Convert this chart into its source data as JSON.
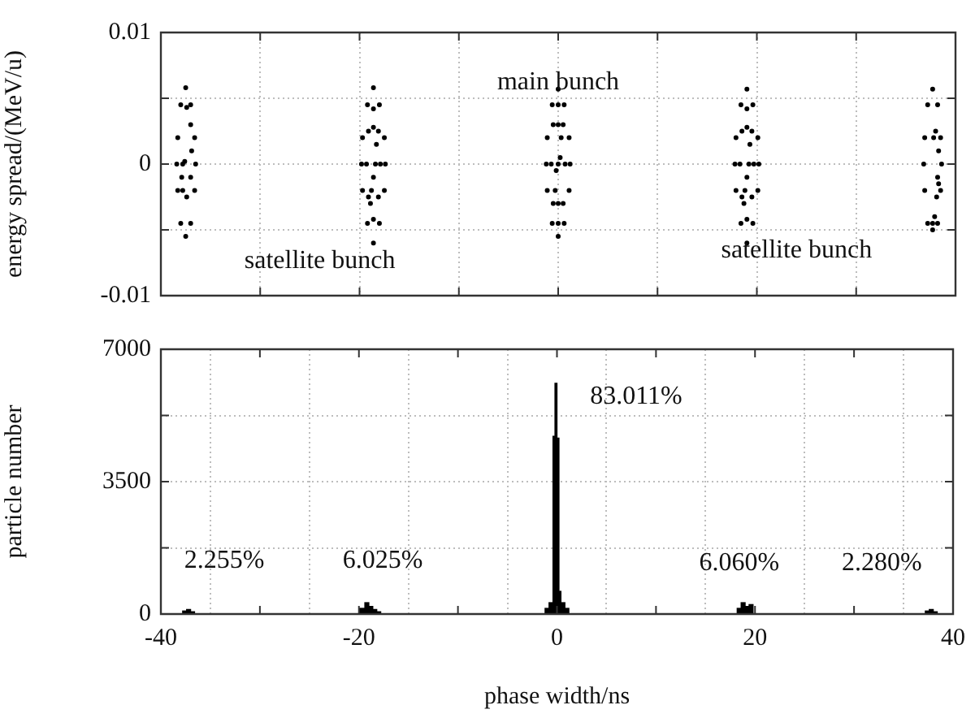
{
  "chart_data": [
    {
      "type": "scatter",
      "ylabel": "energy spread/(MeV/u)",
      "xlim": [
        -40,
        40
      ],
      "xticks": [
        -40,
        {
          "value": -30,
          "label": null
        },
        -20,
        {
          "value": -10,
          "label": null
        },
        0,
        {
          "value": 10,
          "label": null
        },
        20,
        {
          "value": 30,
          "label": null
        },
        40
      ],
      "ylim": [
        -0.01,
        0.01
      ],
      "yticks": [
        -0.01,
        {
          "value": -0.005,
          "label": null
        },
        0,
        {
          "value": 0.005,
          "label": null
        },
        0.01
      ],
      "tick_labels": "y",
      "grid": true,
      "marker": "circle",
      "color": "#000000",
      "x": [
        0,
        0.6,
        1.1,
        1.2,
        1.1,
        0.6,
        0,
        -0.6,
        -1.1,
        -1.2,
        -1.1,
        -0.6,
        0,
        0.5,
        0.7,
        0.5,
        0,
        -0.5,
        -0.7,
        -0.5,
        0,
        0.3,
        0.2,
        0,
        -0.2,
        -0.3,
        0,
        -18.6,
        -18,
        -17.5,
        -17.4,
        -17.5,
        -18,
        -18.6,
        -19.2,
        -19.7,
        -19.8,
        -19.7,
        -19.2,
        -18.6,
        -18.1,
        -17.9,
        -18.1,
        -18.6,
        -19.1,
        -19.3,
        -19.1,
        -18.6,
        -18.3,
        -18.4,
        -18.6,
        -18.8,
        -18.9,
        19,
        19.6,
        20.1,
        20.2,
        20.1,
        19.6,
        19,
        18.4,
        17.9,
        17.8,
        17.9,
        18.4,
        19,
        19.5,
        19.7,
        19.5,
        19,
        18.5,
        18.3,
        18.5,
        19,
        19.3,
        19.2,
        19,
        18.8,
        18.7,
        -37.5,
        -37,
        -36.6,
        -36.5,
        -36.6,
        -37,
        -37.5,
        -38,
        -38.3,
        -38.4,
        -38.3,
        -38,
        -37.4,
        -37,
        -36.9,
        -37,
        -37.4,
        -37.8,
        -37.9,
        -37.8,
        -37.6,
        37.7,
        38.2,
        38.5,
        38.6,
        38.5,
        38.2,
        37.7,
        37.2,
        36.9,
        36.8,
        36.9,
        37.2,
        38,
        38.3,
        38.2,
        38.1,
        37.9,
        37.7,
        37.8,
        38.3
      ],
      "values": [
        0.0057,
        0.0045,
        0.002,
        0,
        -0.002,
        -0.0045,
        -0.0055,
        -0.0045,
        -0.002,
        0,
        0.002,
        0.0045,
        0.0045,
        0.003,
        0,
        -0.003,
        -0.0045,
        -0.003,
        0,
        0.003,
        0.003,
        0.002,
        0.0005,
        0,
        -0.0005,
        -0.002,
        -0.003,
        0.0058,
        0.0045,
        0.002,
        0,
        -0.002,
        -0.0045,
        -0.006,
        -0.0045,
        -0.002,
        0,
        0.002,
        0.0045,
        0.0042,
        0.0025,
        0,
        -0.0025,
        -0.0042,
        -0.0025,
        0,
        0.0025,
        0.0028,
        0.0015,
        0,
        -0.001,
        -0.002,
        -0.003,
        0.0057,
        0.0045,
        0.002,
        0,
        -0.002,
        -0.0045,
        -0.006,
        -0.0045,
        -0.002,
        0,
        0.002,
        0.0045,
        0.0042,
        0.0025,
        0,
        -0.0025,
        -0.0042,
        -0.0025,
        0,
        0.0025,
        0.0028,
        0.0015,
        0,
        -0.001,
        -0.002,
        -0.003,
        0.0058,
        0.0045,
        0.002,
        0,
        -0.002,
        -0.0045,
        -0.0055,
        -0.0045,
        -0.002,
        0,
        0.002,
        0.0045,
        0.0043,
        0.003,
        0.001,
        -0.001,
        -0.0025,
        -0.002,
        -0.001,
        0,
        0.0002,
        0.0057,
        0.0045,
        0.002,
        0,
        -0.002,
        -0.0045,
        -0.005,
        -0.0045,
        -0.002,
        0,
        0.002,
        0.0045,
        0.0025,
        0.001,
        -0.001,
        -0.0025,
        -0.004,
        -0.0045,
        0.002,
        -0.0015
      ],
      "annotations": [
        "main bunch",
        "satellite bunch",
        "satellite bunch"
      ]
    },
    {
      "type": "histogram",
      "ylabel": "particle number",
      "xlabel": "phase width/ns",
      "xlim": [
        -40,
        40
      ],
      "xticks": [
        -40,
        {
          "value": -30,
          "label": null
        },
        -20,
        {
          "value": -10,
          "label": null
        },
        0,
        {
          "value": 10,
          "label": null
        },
        20,
        {
          "value": 30,
          "label": null
        },
        40
      ],
      "ylim": [
        0,
        7000
      ],
      "yticks": [
        0,
        {
          "value": 1750,
          "label": null
        },
        3500,
        {
          "value": 5250,
          "label": null
        },
        7000
      ],
      "grid": true,
      "color": "#000000",
      "bins": [
        -40,
        -37.8,
        -37.4,
        -37,
        -36.6,
        -20,
        -19.4,
        -19,
        -18.6,
        -18.2,
        -17.8,
        -1.2,
        -0.8,
        -0.4,
        -0.2,
        0,
        0.2,
        0.4,
        0.8,
        1.2,
        18.2,
        18.6,
        19,
        19.4,
        19.8,
        37.2,
        37.6,
        38,
        38.4,
        40
      ],
      "values": [
        0,
        80,
        120,
        60,
        0,
        150,
        300,
        200,
        120,
        60,
        0,
        150,
        300,
        4700,
        6100,
        4650,
        600,
        300,
        150,
        0,
        150,
        300,
        200,
        250,
        0,
        80,
        120,
        60,
        0
      ],
      "annotations": [
        "83.011%",
        "2.255%",
        "6.025%",
        "6.060%",
        "2.280%"
      ]
    }
  ]
}
